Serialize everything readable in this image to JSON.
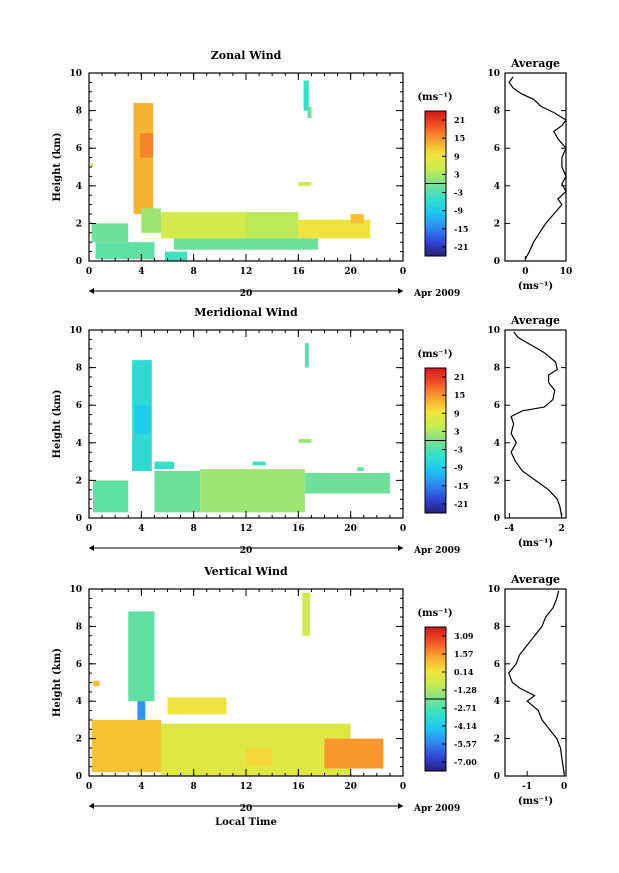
{
  "chart_data": [
    {
      "type": "heatmap",
      "title": "Zonal Wind",
      "ylabel": "Height (km)",
      "x_ticks": [
        "0",
        "4",
        "8",
        "12",
        "16",
        "20",
        "0"
      ],
      "xlim": [
        0,
        24
      ],
      "y_ticks": [
        "0",
        "2",
        "4",
        "6",
        "8",
        "10"
      ],
      "ylim": [
        0,
        10
      ],
      "date_label": "20",
      "month_label": "Apr 2009",
      "colorbar": {
        "unit": "(ms⁻¹)",
        "ticks": [
          "21",
          "15",
          "9",
          "3",
          "-3",
          "-9",
          "-15",
          "-21"
        ],
        "range": [
          -24,
          24
        ]
      },
      "cells": [
        {
          "x0": 3.4,
          "x1": 4.9,
          "y0": 2.5,
          "y1": 8.4,
          "v": 13
        },
        {
          "x0": 3.9,
          "x1": 4.9,
          "y0": 5.5,
          "y1": 6.8,
          "v": 16
        },
        {
          "x0": 16.4,
          "x1": 16.8,
          "y0": 8.0,
          "y1": 9.6,
          "v": -5
        },
        {
          "x0": 16.7,
          "x1": 17.0,
          "y0": 7.6,
          "y1": 8.2,
          "v": -1
        },
        {
          "x0": 0.2,
          "x1": 3.0,
          "y0": 1.0,
          "y1": 2.0,
          "v": -1
        },
        {
          "x0": 0.5,
          "x1": 5.0,
          "y0": 0.1,
          "y1": 1.0,
          "v": -2
        },
        {
          "x0": 4.0,
          "x1": 5.5,
          "y0": 1.5,
          "y1": 2.8,
          "v": 2
        },
        {
          "x0": 5.5,
          "x1": 12.0,
          "y0": 1.2,
          "y1": 2.6,
          "v": 6
        },
        {
          "x0": 12.0,
          "x1": 16.0,
          "y0": 0.8,
          "y1": 2.6,
          "v": 4
        },
        {
          "x0": 16.0,
          "x1": 21.5,
          "y0": 1.2,
          "y1": 2.2,
          "v": 9
        },
        {
          "x0": 6.5,
          "x1": 17.5,
          "y0": 0.6,
          "y1": 1.2,
          "v": -1
        },
        {
          "x0": 5.8,
          "x1": 7.5,
          "y0": 0.0,
          "y1": 0.5,
          "v": -4
        },
        {
          "x0": 0.1,
          "x1": 0.3,
          "y0": 5.0,
          "y1": 5.2,
          "v": 6
        },
        {
          "x0": 16.0,
          "x1": 17.0,
          "y0": 4.0,
          "y1": 4.2,
          "v": 6
        },
        {
          "x0": 20.0,
          "x1": 21.0,
          "y0": 2.0,
          "y1": 2.5,
          "v": 12
        }
      ],
      "profile": {
        "title": "Average",
        "xlabel": "(ms⁻¹)",
        "x_ticks": [
          "0",
          "10"
        ],
        "xlim": [
          -5,
          10
        ],
        "y_ticks": [
          "0",
          "2",
          "4",
          "6",
          "8",
          "10"
        ],
        "ylim": [
          0,
          10
        ],
        "points": [
          [
            0,
            0.1
          ],
          [
            1,
            0.5
          ],
          [
            2,
            1.0
          ],
          [
            3.5,
            1.5
          ],
          [
            5,
            2.0
          ],
          [
            7,
            2.5
          ],
          [
            9,
            3.0
          ],
          [
            8,
            3.3
          ],
          [
            10,
            3.7
          ],
          [
            9,
            4.1
          ],
          [
            10,
            4.5
          ],
          [
            9,
            5.0
          ],
          [
            9,
            5.5
          ],
          [
            10,
            6.0
          ],
          [
            8,
            6.5
          ],
          [
            7,
            6.9
          ],
          [
            9,
            7.2
          ],
          [
            10,
            7.5
          ],
          [
            7,
            7.9
          ],
          [
            4,
            8.2
          ],
          [
            2,
            8.6
          ],
          [
            -1,
            8.9
          ],
          [
            -3,
            9.2
          ],
          [
            -4,
            9.5
          ],
          [
            -3,
            9.8
          ]
        ]
      }
    },
    {
      "type": "heatmap",
      "title": "Meridional Wind",
      "ylabel": "Height (km)",
      "x_ticks": [
        "0",
        "4",
        "8",
        "12",
        "16",
        "20",
        "0"
      ],
      "xlim": [
        0,
        24
      ],
      "y_ticks": [
        "0",
        "2",
        "4",
        "6",
        "8",
        "10"
      ],
      "ylim": [
        0,
        10
      ],
      "date_label": "20",
      "month_label": "Apr 2009",
      "colorbar": {
        "unit": "(ms⁻¹)",
        "ticks": [
          "21",
          "15",
          "9",
          "3",
          "-3",
          "-9",
          "-15",
          "-21"
        ],
        "range": [
          -24,
          24
        ]
      },
      "cells": [
        {
          "x0": 3.3,
          "x1": 4.8,
          "y0": 2.5,
          "y1": 8.4,
          "v": -6
        },
        {
          "x0": 3.5,
          "x1": 4.7,
          "y0": 4.5,
          "y1": 6.0,
          "v": -9
        },
        {
          "x0": 16.5,
          "x1": 16.8,
          "y0": 8.0,
          "y1": 9.3,
          "v": -3
        },
        {
          "x0": 0.3,
          "x1": 3.0,
          "y0": 0.3,
          "y1": 2.0,
          "v": -2
        },
        {
          "x0": 5.0,
          "x1": 8.5,
          "y0": 0.3,
          "y1": 2.5,
          "v": -1
        },
        {
          "x0": 8.5,
          "x1": 16.5,
          "y0": 0.3,
          "y1": 2.6,
          "v": 2
        },
        {
          "x0": 16.5,
          "x1": 23.0,
          "y0": 1.3,
          "y1": 2.4,
          "v": -1
        },
        {
          "x0": 5.0,
          "x1": 6.5,
          "y0": 2.6,
          "y1": 3.0,
          "v": -5
        },
        {
          "x0": 12.5,
          "x1": 13.5,
          "y0": 2.8,
          "y1": 3.0,
          "v": -5
        },
        {
          "x0": 16.0,
          "x1": 17.0,
          "y0": 4.0,
          "y1": 4.2,
          "v": 2
        },
        {
          "x0": 20.5,
          "x1": 21.0,
          "y0": 2.5,
          "y1": 2.7,
          "v": -1
        }
      ],
      "profile": {
        "title": "Average",
        "xlabel": "(ms⁻¹)",
        "x_ticks": [
          "-4",
          "2"
        ],
        "xlim": [
          -4.5,
          2.5
        ],
        "y_ticks": [
          "0",
          "2",
          "4",
          "6",
          "8",
          "10"
        ],
        "ylim": [
          0,
          10
        ],
        "points": [
          [
            2,
            0.1
          ],
          [
            1.8,
            0.6
          ],
          [
            1.5,
            1.0
          ],
          [
            0.5,
            1.5
          ],
          [
            -1,
            2.0
          ],
          [
            -2.5,
            2.5
          ],
          [
            -3.3,
            3.0
          ],
          [
            -3.8,
            3.5
          ],
          [
            -3.2,
            4.0
          ],
          [
            -3.8,
            4.5
          ],
          [
            -3.5,
            5.0
          ],
          [
            -3.8,
            5.4
          ],
          [
            -2.5,
            5.7
          ],
          [
            0,
            5.9
          ],
          [
            1.0,
            6.3
          ],
          [
            1.2,
            6.8
          ],
          [
            0.5,
            7.2
          ],
          [
            0.5,
            7.6
          ],
          [
            1.5,
            7.9
          ],
          [
            1.3,
            8.3
          ],
          [
            0,
            8.8
          ],
          [
            -1.5,
            9.2
          ],
          [
            -3,
            9.6
          ],
          [
            -3.5,
            9.9
          ]
        ]
      }
    },
    {
      "type": "heatmap",
      "title": "Vertical Wind",
      "ylabel": "Height (km)",
      "xlabel": "Local Time",
      "x_ticks": [
        "0",
        "4",
        "8",
        "12",
        "16",
        "20",
        "0"
      ],
      "xlim": [
        0,
        24
      ],
      "y_ticks": [
        "0",
        "2",
        "4",
        "6",
        "8",
        "10"
      ],
      "ylim": [
        0,
        10
      ],
      "date_label": "20",
      "month_label": "Apr 2009",
      "colorbar": {
        "unit": "(ms⁻¹)",
        "ticks": [
          "3.09",
          "1.57",
          "0.14",
          "-1.28",
          "-2.71",
          "-4.14",
          "-5.57",
          "-7.00"
        ],
        "range": [
          -7.7,
          3.8
        ]
      },
      "cells": [
        {
          "x0": 3.0,
          "x1": 5.0,
          "y0": 4.0,
          "y1": 8.8,
          "v": -2.4
        },
        {
          "x0": 3.7,
          "x1": 4.3,
          "y0": 2.4,
          "y1": 4.0,
          "v": -5.2
        },
        {
          "x0": 16.3,
          "x1": 16.9,
          "y0": 7.5,
          "y1": 9.8,
          "v": -0.6
        },
        {
          "x0": 0.2,
          "x1": 5.5,
          "y0": 0.2,
          "y1": 3.0,
          "v": 0.9
        },
        {
          "x0": 5.5,
          "x1": 20.0,
          "y0": 0.0,
          "y1": 2.8,
          "v": -0.2
        },
        {
          "x0": 18.0,
          "x1": 22.5,
          "y0": 0.4,
          "y1": 2.0,
          "v": 1.6
        },
        {
          "x0": 6.0,
          "x1": 10.5,
          "y0": 3.3,
          "y1": 4.2,
          "v": 0.2
        },
        {
          "x0": 0.3,
          "x1": 0.8,
          "y0": 4.8,
          "y1": 5.1,
          "v": 1.0
        },
        {
          "x0": 12.0,
          "x1": 14.0,
          "y0": 0.5,
          "y1": 1.5,
          "v": 0.5
        }
      ],
      "profile": {
        "title": "Average",
        "xlabel": "(ms⁻¹)",
        "x_ticks": [
          "-1",
          "0"
        ],
        "xlim": [
          -1.6,
          0.05
        ],
        "y_ticks": [
          "0",
          "2",
          "4",
          "6",
          "8",
          "10"
        ],
        "ylim": [
          0,
          10
        ],
        "points": [
          [
            0,
            0.1
          ],
          [
            -0.05,
            0.8
          ],
          [
            -0.1,
            1.5
          ],
          [
            -0.2,
            2.0
          ],
          [
            -0.4,
            2.5
          ],
          [
            -0.6,
            3.0
          ],
          [
            -0.7,
            3.5
          ],
          [
            -1.0,
            4.0
          ],
          [
            -0.8,
            4.3
          ],
          [
            -1.2,
            4.7
          ],
          [
            -1.4,
            5.0
          ],
          [
            -1.5,
            5.5
          ],
          [
            -1.3,
            6.0
          ],
          [
            -1.2,
            6.5
          ],
          [
            -1.0,
            7.0
          ],
          [
            -0.8,
            7.5
          ],
          [
            -0.6,
            8.0
          ],
          [
            -0.5,
            8.5
          ],
          [
            -0.3,
            9.0
          ],
          [
            -0.2,
            9.5
          ],
          [
            -0.15,
            9.9
          ]
        ]
      }
    }
  ]
}
